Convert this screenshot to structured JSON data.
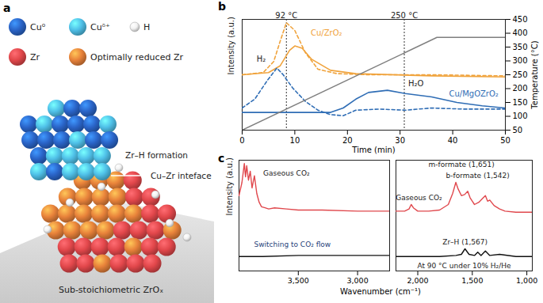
{
  "diagram": {
    "panel": "a",
    "legend": [
      {
        "label": "Cu⁰",
        "color": "#2a64c8"
      },
      {
        "label": "Cuᵟ⁺",
        "color": "#4fc0e8"
      },
      {
        "label": "H",
        "color": "#f2f2f2"
      },
      {
        "label": "Zr",
        "color": "#e2474b"
      },
      {
        "label": "Optimally reduced Zr",
        "color": "#e8823a"
      }
    ],
    "labels": [
      "Zr–H formation",
      "Cu–Zr inteface",
      "Sub-stoichiometric ZrOₓ"
    ]
  },
  "chart_data": [
    {
      "panel": "b",
      "type": "line",
      "xlabel": "Time (min)",
      "ylabel": "Intensity (a.u.)",
      "y2label": "Temperature (°C)",
      "xlim": [
        0,
        50
      ],
      "xticks": [
        0,
        10,
        20,
        30,
        40,
        50
      ],
      "ylim": [
        0,
        100
      ],
      "yticks": [],
      "y2lim": [
        50,
        450
      ],
      "y2ticks": [
        50,
        100,
        150,
        200,
        250,
        300,
        350,
        400,
        450
      ],
      "vlines": [
        {
          "x": 8.4,
          "label": "92 °C"
        },
        {
          "x": 30.8,
          "label": "250 °C"
        }
      ],
      "series": [
        {
          "color": "#f0a33c",
          "line_style": "dashed",
          "x": [
            0,
            4,
            6,
            7.2,
            8.4,
            10,
            12,
            14.4,
            18,
            24,
            36,
            50
          ],
          "values": [
            50,
            52,
            62,
            80,
            97,
            90,
            70,
            55,
            51,
            50,
            50,
            49
          ]
        },
        {
          "color": "#f0a33c",
          "line_style": "solid",
          "x": [
            0,
            5,
            7.2,
            9,
            10,
            11.4,
            13.2,
            16.8,
            21.6,
            36,
            50
          ],
          "values": [
            50,
            52,
            58,
            72,
            76,
            74,
            64,
            54,
            51,
            49,
            48
          ]
        },
        {
          "color": "#2f6db5",
          "line_style": "dashed",
          "x": [
            0,
            2.4,
            4.8,
            6.6,
            7.8,
            9.6,
            12,
            14.4,
            16.8,
            19.2,
            21.6,
            26,
            31,
            36,
            42,
            50
          ],
          "values": [
            20,
            28,
            45,
            56,
            50,
            38,
            26,
            18,
            14,
            13,
            18,
            19,
            18,
            20,
            19,
            19
          ]
        },
        {
          "color": "#2f6db5",
          "line_style": "solid",
          "x": [
            0,
            12,
            16.8,
            19.2,
            21.6,
            24,
            27.6,
            31,
            36,
            40.8,
            45.6,
            50
          ],
          "values": [
            16,
            16,
            16,
            20,
            28,
            34,
            36,
            33,
            30,
            25,
            22,
            20
          ]
        },
        {
          "color": "#7f7f7f",
          "line_style": "solid",
          "axis": "y2",
          "x": [
            0,
            37,
            50
          ],
          "values": [
            50,
            385,
            385
          ]
        }
      ],
      "annotations": [
        {
          "text": "Cu/ZrO₂",
          "x": 16,
          "y": 88,
          "color": "#f0a33c"
        },
        {
          "text": "H₂",
          "x": 3.6,
          "y": 64,
          "color": "#222222"
        },
        {
          "text": "H₂O",
          "x": 33,
          "y": 42,
          "color": "#222222"
        },
        {
          "text": "Cu/MgOZrO₂",
          "x": 44,
          "y": 33,
          "color": "#2f6db5"
        }
      ]
    },
    {
      "panel": "c",
      "type": "line",
      "xlabel": "Wavenumber (cm⁻¹)",
      "ylabel": "Intensity (a.u.)",
      "ylim": [
        0,
        100
      ],
      "yticks": [],
      "segments": [
        {
          "xlim": [
            4000,
            2730
          ],
          "xticks": [
            {
              "value": 3500,
              "label": "3,500"
            },
            {
              "value": 3000,
              "label": "3,000"
            }
          ],
          "series": [
            {
              "color": "#e0484d",
              "line_style": "solid",
              "x": [
                4000,
                3975,
                3955,
                3945,
                3935,
                3920,
                3905,
                3890,
                3870,
                3850,
                3830,
                3810,
                3780,
                3750,
                3700,
                3600,
                3500,
                3300,
                3000,
                2730
              ],
              "values": [
                68,
                80,
                97,
                85,
                95,
                82,
                90,
                75,
                86,
                70,
                62,
                58,
                57,
                56,
                57,
                56,
                55,
                55,
                54,
                54
              ]
            },
            {
              "color": "#111111",
              "line_style": "solid",
              "x": [
                4000,
                3800,
                3500,
                3200,
                3000,
                2730
              ],
              "values": [
                13,
                13,
                14,
                14,
                14,
                14
              ]
            }
          ],
          "annotations": [
            {
              "text": "Gaseous CO₂",
              "x": 3600,
              "y": 88,
              "color": "#222222"
            },
            {
              "text": "Switching to CO₂ flow",
              "x": 3550,
              "y": 24,
              "color": "#1f3f7a"
            }
          ]
        },
        {
          "xlim": [
            2200,
            950
          ],
          "xticks": [
            {
              "value": 2000,
              "label": "2,000"
            },
            {
              "value": 1500,
              "label": "1,500"
            },
            {
              "value": 1000,
              "label": "1,000"
            }
          ],
          "series": [
            {
              "color": "#e0484d",
              "line_style": "solid",
              "x": [
                2200,
                2120,
                2080,
                2060,
                2040,
                2000,
                1900,
                1800,
                1720,
                1680,
                1651,
                1630,
                1600,
                1570,
                1542,
                1520,
                1480,
                1440,
                1400,
                1380,
                1360,
                1340,
                1300,
                1250,
                1200,
                1100,
                1000,
                950
              ],
              "values": [
                54,
                54,
                56,
                60,
                57,
                54,
                54,
                55,
                60,
                70,
                80,
                74,
                68,
                69,
                72,
                66,
                60,
                62,
                66,
                68,
                63,
                64,
                59,
                56,
                54,
                53,
                53,
                53
              ]
            },
            {
              "color": "#111111",
              "line_style": "solid",
              "x": [
                2200,
                1800,
                1650,
                1600,
                1567,
                1530,
                1480,
                1450,
                1420,
                1380,
                1340,
                1250,
                1100,
                950
              ],
              "values": [
                13,
                13,
                14,
                15,
                20,
                15,
                14,
                17,
                14,
                18,
                14,
                15,
                13,
                13
              ]
            }
          ],
          "annotations": [
            {
              "text": "Gaseous CO₂",
              "x": 1990,
              "y": 66,
              "color": "#222222"
            },
            {
              "text": "m-formate (1,651)",
              "x": 1600,
              "y": 96,
              "color": "#222222"
            },
            {
              "text": "b-formate (1,542)",
              "x": 1450,
              "y": 86,
              "color": "#222222"
            },
            {
              "text": "Zr–H (1,567)",
              "x": 1567,
              "y": 26,
              "color": "#222222"
            },
            {
              "text": "At 90 °C under 10% H₂/He",
              "x": 1575,
              "y": 4.5,
              "color": "#222222"
            }
          ]
        }
      ]
    }
  ]
}
